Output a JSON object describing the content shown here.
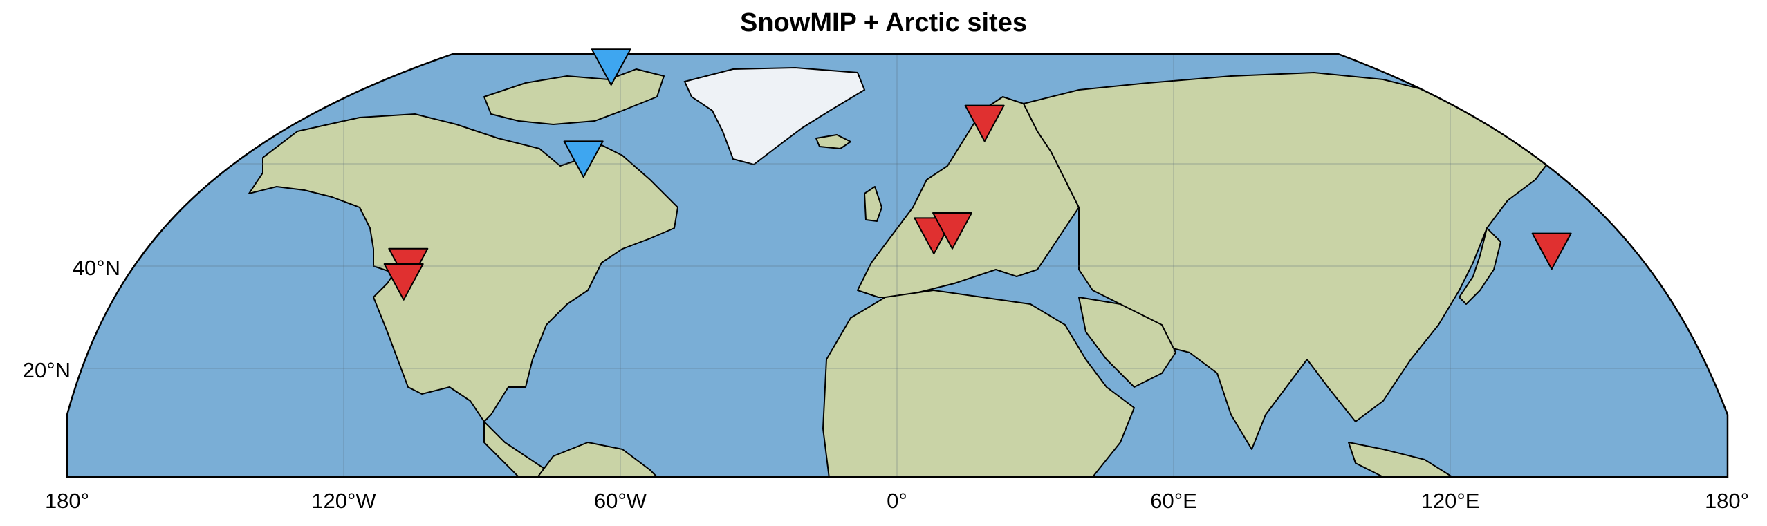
{
  "title": "SnowMIP + Arctic sites",
  "axes": {
    "lon_ticks": [
      "180°",
      "120°W",
      "60°W",
      "0°",
      "60°E",
      "120°E",
      "180°"
    ],
    "lat_ticks": [
      "40°N",
      "20°N"
    ]
  },
  "colors": {
    "ocean": "#7aaed6",
    "land": "#c9d3a6",
    "ice": "#eef2f6",
    "snowmip_marker": "#e03030",
    "arctic_marker": "#3ea6f0"
  },
  "markers": [
    {
      "group": "SnowMIP",
      "lon": -106,
      "lat": 40
    },
    {
      "group": "SnowMIP",
      "lon": -107,
      "lat": 37
    },
    {
      "group": "SnowMIP",
      "lon": 19,
      "lat": 68
    },
    {
      "group": "SnowMIP",
      "lon": 8,
      "lat": 46
    },
    {
      "group": "SnowMIP",
      "lon": 12,
      "lat": 47
    },
    {
      "group": "SnowMIP",
      "lon": 142,
      "lat": 43
    },
    {
      "group": "Arctic",
      "lon": -62,
      "lat": 79
    },
    {
      "group": "Arctic",
      "lon": -68,
      "lat": 61
    }
  ]
}
